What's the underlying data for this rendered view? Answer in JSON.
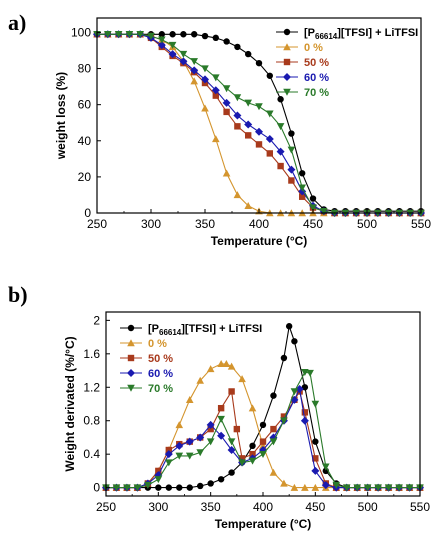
{
  "labels": {
    "panel_a": "a)",
    "panel_b": "b)"
  },
  "chart_data": [
    {
      "type": "line",
      "panel": "a",
      "xlabel": "Temperature (°C)",
      "ylabel": "weight loss (%)",
      "xlim": [
        250,
        550
      ],
      "ylim": [
        0,
        108
      ],
      "xticks": [
        "250",
        "300",
        "350",
        "400",
        "450",
        "500",
        "550"
      ],
      "yticks": [
        "0",
        "20",
        "40",
        "60",
        "80",
        "100"
      ],
      "legend": {
        "position": "top-right"
      },
      "series": [
        {
          "name": "[P66614][TFSI] + LiTFSI",
          "name_main": "[P",
          "name_sub": "66614",
          "name_rest": "][TFSI] + LiTFSI",
          "color": "#000000",
          "marker": "circle",
          "x": [
            250,
            260,
            270,
            280,
            290,
            300,
            310,
            320,
            330,
            340,
            350,
            360,
            370,
            380,
            390,
            400,
            410,
            420,
            430,
            440,
            450,
            460,
            470,
            480,
            490,
            500,
            510,
            520,
            530,
            540,
            550
          ],
          "y": [
            99,
            99,
            99,
            99,
            99,
            99,
            99,
            99,
            99,
            99,
            98,
            97,
            95,
            92,
            88,
            83,
            76,
            63,
            44,
            22,
            8,
            2,
            1,
            1,
            1,
            1,
            1,
            1,
            1,
            1,
            1
          ]
        },
        {
          "name": "0 %",
          "color": "#d4952e",
          "marker": "triangle-up",
          "x": [
            250,
            260,
            270,
            280,
            290,
            300,
            310,
            320,
            330,
            340,
            350,
            360,
            370,
            380,
            390,
            400,
            410,
            420,
            430,
            440,
            450,
            460,
            470,
            480,
            490,
            500,
            510,
            520,
            530,
            540,
            550
          ],
          "y": [
            99,
            99,
            99,
            99,
            99,
            98,
            96,
            92,
            84,
            73,
            58,
            41,
            22,
            10,
            4,
            1,
            0,
            0,
            0,
            0,
            0,
            0,
            0,
            0,
            0,
            0,
            0,
            0,
            0,
            0,
            0
          ]
        },
        {
          "name": "50 %",
          "color": "#a83a1c",
          "marker": "square",
          "x": [
            250,
            260,
            270,
            280,
            290,
            300,
            310,
            320,
            330,
            340,
            350,
            360,
            370,
            380,
            390,
            400,
            410,
            420,
            430,
            440,
            450,
            460,
            470,
            480,
            490,
            500,
            510,
            520,
            530,
            540,
            550
          ],
          "y": [
            99,
            99,
            99,
            99,
            99,
            97,
            92,
            87,
            83,
            78,
            72,
            65,
            56,
            48,
            43,
            38,
            33,
            26,
            18,
            9,
            3,
            1,
            0,
            0,
            0,
            0,
            0,
            0,
            0,
            0,
            0
          ]
        },
        {
          "name": "60 %",
          "color": "#1a1ab0",
          "marker": "diamond",
          "x": [
            250,
            260,
            270,
            280,
            290,
            300,
            310,
            320,
            330,
            340,
            350,
            360,
            370,
            380,
            390,
            400,
            410,
            420,
            430,
            440,
            450,
            460,
            470,
            480,
            490,
            500,
            510,
            520,
            530,
            540,
            550
          ],
          "y": [
            99,
            99,
            99,
            99,
            99,
            97,
            93,
            88,
            84,
            79,
            74,
            68,
            61,
            54,
            49,
            45,
            41,
            34,
            24,
            12,
            4,
            1,
            0,
            0,
            0,
            0,
            0,
            0,
            0,
            0,
            0
          ]
        },
        {
          "name": "70 %",
          "color": "#2a7a2a",
          "marker": "triangle-down",
          "x": [
            250,
            260,
            270,
            280,
            290,
            300,
            310,
            320,
            330,
            340,
            350,
            360,
            370,
            380,
            390,
            400,
            410,
            420,
            430,
            440,
            450,
            460,
            470,
            480,
            490,
            500,
            510,
            520,
            530,
            540,
            550
          ],
          "y": [
            99,
            99,
            99,
            99,
            99,
            98,
            96,
            93,
            88,
            84,
            80,
            75,
            69,
            64,
            61,
            59,
            55,
            48,
            35,
            14,
            3,
            1,
            0,
            0,
            0,
            0,
            0,
            0,
            0,
            0,
            0
          ]
        }
      ]
    },
    {
      "type": "line",
      "panel": "b",
      "xlabel": "Temperature (°C)",
      "ylabel": "Weight derivated (%/°C)",
      "xlim": [
        250,
        550
      ],
      "ylim": [
        -0.1,
        2.1
      ],
      "xticks": [
        "250",
        "300",
        "350",
        "400",
        "450",
        "500",
        "550"
      ],
      "yticks": [
        "0",
        "0.4",
        "0.8",
        "1.2",
        "1.6",
        "2"
      ],
      "legend": {
        "position": "top-left"
      },
      "series": [
        {
          "name": "[P66614][TFSI] + LiTFSI",
          "name_main": "[P",
          "name_sub": "66614",
          "name_rest": "][TFSI] + LiTFSI",
          "color": "#000000",
          "marker": "circle",
          "x": [
            250,
            260,
            270,
            280,
            290,
            300,
            310,
            320,
            330,
            340,
            350,
            360,
            370,
            380,
            390,
            400,
            410,
            420,
            425,
            430,
            440,
            450,
            460,
            470,
            480,
            490,
            500,
            510,
            520,
            530,
            540,
            550
          ],
          "y": [
            0,
            0,
            0,
            0,
            0,
            0,
            0,
            0,
            0,
            0.02,
            0.05,
            0.1,
            0.18,
            0.3,
            0.5,
            0.75,
            1.1,
            1.55,
            1.93,
            1.75,
            1.2,
            0.55,
            0.2,
            0.05,
            0,
            0,
            0,
            0,
            0,
            0,
            0,
            0
          ]
        },
        {
          "name": "0 %",
          "color": "#d4952e",
          "marker": "triangle-up",
          "x": [
            250,
            260,
            270,
            280,
            290,
            300,
            310,
            320,
            330,
            340,
            350,
            360,
            365,
            370,
            380,
            390,
            400,
            410,
            420,
            430,
            440,
            450,
            460,
            470,
            480,
            490,
            500,
            510,
            520,
            530,
            540,
            550
          ],
          "y": [
            0,
            0,
            0,
            0,
            0.05,
            0.2,
            0.45,
            0.75,
            1.05,
            1.28,
            1.42,
            1.48,
            1.48,
            1.45,
            1.3,
            0.95,
            0.5,
            0.18,
            0.05,
            0,
            0,
            0,
            0,
            0,
            0,
            0,
            0,
            0,
            0,
            0,
            0,
            0
          ]
        },
        {
          "name": "50 %",
          "color": "#a83a1c",
          "marker": "square",
          "x": [
            250,
            260,
            270,
            280,
            290,
            300,
            310,
            320,
            330,
            340,
            350,
            360,
            370,
            375,
            380,
            390,
            400,
            410,
            420,
            430,
            435,
            440,
            450,
            460,
            470,
            480,
            490,
            500,
            510,
            520,
            530,
            540,
            550
          ],
          "y": [
            0,
            0,
            0,
            0,
            0.05,
            0.2,
            0.45,
            0.52,
            0.55,
            0.6,
            0.7,
            0.95,
            1.15,
            0.7,
            0.35,
            0.4,
            0.55,
            0.7,
            0.85,
            1.05,
            1.15,
            0.9,
            0.35,
            0.05,
            0,
            0,
            0,
            0,
            0,
            0,
            0,
            0,
            0
          ]
        },
        {
          "name": "60 %",
          "color": "#1a1ab0",
          "marker": "diamond",
          "x": [
            250,
            260,
            270,
            280,
            290,
            300,
            310,
            320,
            330,
            340,
            350,
            360,
            370,
            380,
            390,
            400,
            410,
            420,
            430,
            435,
            440,
            450,
            460,
            470,
            480,
            490,
            500,
            510,
            520,
            530,
            540,
            550
          ],
          "y": [
            0,
            0,
            0,
            0,
            0.05,
            0.15,
            0.4,
            0.5,
            0.55,
            0.6,
            0.75,
            0.62,
            0.45,
            0.3,
            0.35,
            0.45,
            0.6,
            0.8,
            1.05,
            1.18,
            0.8,
            0.2,
            0.03,
            0,
            0,
            0,
            0,
            0,
            0,
            0,
            0,
            0
          ]
        },
        {
          "name": "70 %",
          "color": "#2a7a2a",
          "marker": "triangle-down",
          "x": [
            250,
            260,
            270,
            280,
            290,
            300,
            310,
            320,
            330,
            340,
            350,
            360,
            370,
            380,
            390,
            400,
            410,
            420,
            430,
            440,
            445,
            450,
            460,
            470,
            480,
            490,
            500,
            510,
            520,
            530,
            540,
            550
          ],
          "y": [
            0,
            0,
            0,
            0,
            0.03,
            0.1,
            0.3,
            0.38,
            0.38,
            0.42,
            0.55,
            0.82,
            0.55,
            0.3,
            0.32,
            0.4,
            0.55,
            0.8,
            1.15,
            1.38,
            1.37,
            1.0,
            0.25,
            0.03,
            0,
            0,
            0,
            0,
            0,
            0,
            0,
            0
          ]
        }
      ]
    }
  ]
}
